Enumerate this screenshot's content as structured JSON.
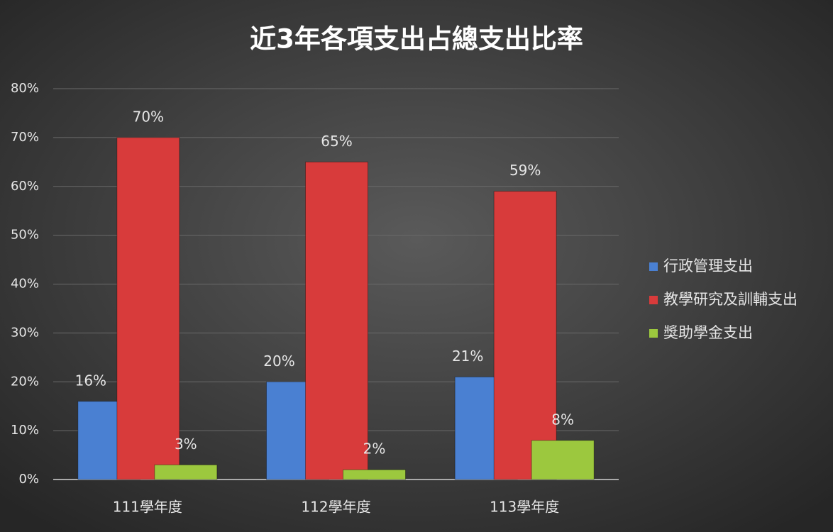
{
  "chart_data": {
    "type": "bar",
    "title": "近3年各項支出占總支出比率",
    "categories": [
      "111學年度",
      "112學年度",
      "113學年度"
    ],
    "series": [
      {
        "name": "行政管理支出",
        "color": "#4a80d2",
        "values": [
          16,
          20,
          21
        ],
        "value_labels": [
          "16%",
          "20%",
          "21%"
        ]
      },
      {
        "name": "教學研究及訓輔支出",
        "color": "#d83b3b",
        "values": [
          70,
          65,
          59
        ],
        "value_labels": [
          "70%",
          "65%",
          "59%"
        ]
      },
      {
        "name": "獎助學金支出",
        "color": "#9cc83e",
        "values": [
          3,
          2,
          8
        ],
        "value_labels": [
          "3%",
          "2%",
          "8%"
        ]
      }
    ],
    "ylim": [
      0,
      80
    ],
    "yticks": [
      {
        "value": 0,
        "label": "0%"
      },
      {
        "value": 10,
        "label": "10%"
      },
      {
        "value": 20,
        "label": "20%"
      },
      {
        "value": 30,
        "label": "30%"
      },
      {
        "value": 40,
        "label": "40%"
      },
      {
        "value": 50,
        "label": "50%"
      },
      {
        "value": 60,
        "label": "60%"
      },
      {
        "value": 70,
        "label": "70%"
      },
      {
        "value": 80,
        "label": "80%"
      }
    ],
    "grid": true,
    "legend": "right"
  }
}
